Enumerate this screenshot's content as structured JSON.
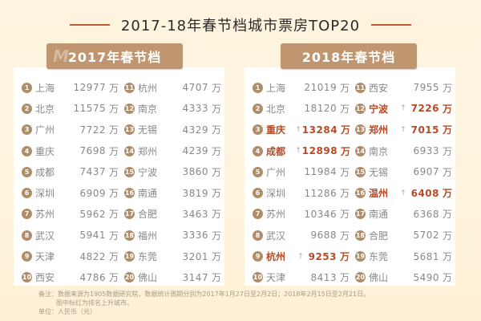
{
  "title": "2017-18年春节档城市票房TOP20",
  "unit_label": "万",
  "colors": {
    "background": "#fdf3de",
    "header_badge": "#c09670",
    "rank_badge": "#b08d6a",
    "rising_text": "#b84a25",
    "title_line": "#c25a35"
  },
  "panels": {
    "y2017": {
      "header": "2017年春节档",
      "left": [
        {
          "rank": "1",
          "city": "上海",
          "value": "12977",
          "up": false
        },
        {
          "rank": "2",
          "city": "北京",
          "value": "11575",
          "up": false
        },
        {
          "rank": "3",
          "city": "广州",
          "value": "7722",
          "up": false
        },
        {
          "rank": "4",
          "city": "重庆",
          "value": "7698",
          "up": false
        },
        {
          "rank": "5",
          "city": "成都",
          "value": "7437",
          "up": false
        },
        {
          "rank": "6",
          "city": "深圳",
          "value": "6909",
          "up": false
        },
        {
          "rank": "7",
          "city": "苏州",
          "value": "5962",
          "up": false
        },
        {
          "rank": "8",
          "city": "武汉",
          "value": "5941",
          "up": false
        },
        {
          "rank": "9",
          "city": "天津",
          "value": "4822",
          "up": false
        },
        {
          "rank": "10",
          "city": "西安",
          "value": "4786",
          "up": false
        }
      ],
      "right": [
        {
          "rank": "11",
          "city": "杭州",
          "value": "4707",
          "up": false
        },
        {
          "rank": "12",
          "city": "南京",
          "value": "4333",
          "up": false
        },
        {
          "rank": "13",
          "city": "无锡",
          "value": "4329",
          "up": false
        },
        {
          "rank": "14",
          "city": "郑州",
          "value": "4239",
          "up": false
        },
        {
          "rank": "15",
          "city": "宁波",
          "value": "3860",
          "up": false
        },
        {
          "rank": "16",
          "city": "南通",
          "value": "3819",
          "up": false
        },
        {
          "rank": "17",
          "city": "合肥",
          "value": "3463",
          "up": false
        },
        {
          "rank": "18",
          "city": "福州",
          "value": "3336",
          "up": false
        },
        {
          "rank": "19",
          "city": "东莞",
          "value": "3201",
          "up": false
        },
        {
          "rank": "20",
          "city": "佛山",
          "value": "3147",
          "up": false
        }
      ]
    },
    "y2018": {
      "header": "2018年春节档",
      "left": [
        {
          "rank": "1",
          "city": "上海",
          "value": "21019",
          "up": false
        },
        {
          "rank": "2",
          "city": "北京",
          "value": "18120",
          "up": false
        },
        {
          "rank": "3",
          "city": "重庆",
          "value": "13284",
          "up": true
        },
        {
          "rank": "4",
          "city": "成都",
          "value": "12898",
          "up": true
        },
        {
          "rank": "5",
          "city": "广州",
          "value": "11984",
          "up": false
        },
        {
          "rank": "6",
          "city": "深圳",
          "value": "11286",
          "up": false
        },
        {
          "rank": "7",
          "city": "苏州",
          "value": "10346",
          "up": false
        },
        {
          "rank": "8",
          "city": "武汉",
          "value": "9688",
          "up": false
        },
        {
          "rank": "9",
          "city": "杭州",
          "value": "9253",
          "up": true
        },
        {
          "rank": "10",
          "city": "天津",
          "value": "8413",
          "up": false
        }
      ],
      "right": [
        {
          "rank": "11",
          "city": "西安",
          "value": "7955",
          "up": false
        },
        {
          "rank": "12",
          "city": "宁波",
          "value": "7226",
          "up": true
        },
        {
          "rank": "13",
          "city": "郑州",
          "value": "7015",
          "up": true
        },
        {
          "rank": "14",
          "city": "南京",
          "value": "6933",
          "up": false
        },
        {
          "rank": "15",
          "city": "无锡",
          "value": "6907",
          "up": false
        },
        {
          "rank": "16",
          "city": "温州",
          "value": "6408",
          "up": true
        },
        {
          "rank": "17",
          "city": "南通",
          "value": "6368",
          "up": false
        },
        {
          "rank": "18",
          "city": "合肥",
          "value": "5702",
          "up": false
        },
        {
          "rank": "19",
          "city": "东莞",
          "value": "5681",
          "up": false
        },
        {
          "rank": "20",
          "city": "佛山",
          "value": "5490",
          "up": false
        }
      ]
    }
  },
  "notes": {
    "line1": "备注：数据来源为1905数据研究院，数据统计周期分别为2017年1月27日至2月2日；2018年2月15日至2月21日。",
    "line2": "图中标红为排名上升城市。",
    "line3": "单位：人民币（元）"
  }
}
